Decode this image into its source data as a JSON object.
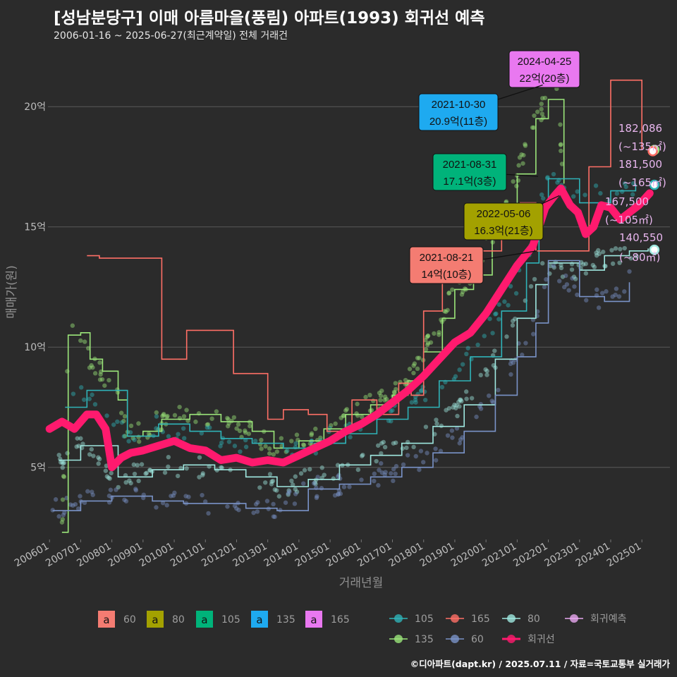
{
  "title": "[성남분당구] 이매 아름마을(풍림) 아파트(1993) 회귀선 예측",
  "subtitle": "2006-01-16 ~ 2025-06-27(최근계약일) 전체 거래건",
  "caption": "©디아파트(dapt.kr) / 2025.07.11 / 자료=국토교통부 실거래가",
  "chart_data": {
    "type": "line",
    "xlabel": "거래년월",
    "ylabel": "매매가(원)",
    "ylim": [
      2,
      22.5
    ],
    "xlim": [
      2005.95,
      2025.9
    ],
    "y_unit_suffix": "억",
    "y_ticks": [
      5,
      10,
      15,
      20
    ],
    "x_tick_labels": [
      "200601",
      "200701",
      "200801",
      "200901",
      "201001",
      "201101",
      "201201",
      "201301",
      "201401",
      "201501",
      "201601",
      "201701",
      "201801",
      "201901",
      "202001",
      "202101",
      "202201",
      "202301",
      "202401",
      "202501"
    ],
    "grid": "horizontal",
    "legend_placement": "bottom",
    "colors": {
      "60": "#7a93c8",
      "80": "#9fe8e0",
      "105": "#2fb3b8",
      "135": "#9be67a",
      "165": "#ff6f66",
      "regression": "#ff1a6e",
      "forecast": "#e8a8f0"
    },
    "series": [
      {
        "name": "135",
        "x": [
          2006.4,
          2006.6,
          2007.0,
          2007.3,
          2007.7,
          2008.2,
          2008.5,
          2009.0,
          2009.6,
          2010.5,
          2011.5,
          2012.5,
          2013.2,
          2014.0,
          2014.8,
          2015.5,
          2016.3,
          2017.0,
          2017.5,
          2018.0,
          2018.6,
          2019.0,
          2019.6,
          2020.2,
          2020.7,
          2021.0,
          2021.6,
          2022.0,
          2022.3,
          2022.5
        ],
        "y": [
          2.3,
          10.5,
          10.6,
          9.5,
          9.0,
          7.8,
          6.3,
          6.5,
          7.0,
          7.2,
          6.9,
          6.5,
          5.8,
          6.1,
          6.6,
          7.2,
          7.6,
          8.0,
          8.6,
          9.8,
          11.2,
          12.4,
          13.0,
          14.6,
          15.8,
          17.2,
          19.5,
          20.3,
          20.3,
          16.8
        ]
      },
      {
        "name": "105",
        "x": [
          2006.5,
          2007.2,
          2008.5,
          2009.5,
          2010.5,
          2011.5,
          2012.5,
          2013.5,
          2014.5,
          2015.5,
          2016.5,
          2017.5,
          2018.5,
          2019.5,
          2020.5,
          2021.3,
          2021.7,
          2022.0,
          2023.0,
          2024.0,
          2024.8
        ],
        "y": [
          7.5,
          8.2,
          6.3,
          6.8,
          6.5,
          6.2,
          6.0,
          5.8,
          6.0,
          6.4,
          7.0,
          7.5,
          8.6,
          9.6,
          11.5,
          13.5,
          15.8,
          17.0,
          16.0,
          16.5,
          16.8
        ]
      },
      {
        "name": "80",
        "x": [
          2006.3,
          2007.0,
          2008.2,
          2009.3,
          2010.3,
          2011.3,
          2012.3,
          2013.3,
          2014.3,
          2015.3,
          2016.3,
          2017.3,
          2018.3,
          2019.3,
          2020.3,
          2021.0,
          2021.6,
          2022.0,
          2023.0,
          2023.8,
          2024.6,
          2025.2
        ],
        "y": [
          5.3,
          5.9,
          4.6,
          4.9,
          5.1,
          4.9,
          4.6,
          4.2,
          4.5,
          5.1,
          5.5,
          6.0,
          6.7,
          7.6,
          9.5,
          11.2,
          12.6,
          13.5,
          13.2,
          13.8,
          14.0,
          14.1
        ]
      },
      {
        "name": "60",
        "x": [
          2006.1,
          2007.0,
          2008.0,
          2009.3,
          2010.3,
          2011.3,
          2012.3,
          2013.3,
          2014.3,
          2015.3,
          2016.3,
          2017.3,
          2018.3,
          2019.3,
          2020.3,
          2021.0,
          2021.6,
          2022.0,
          2023.0,
          2023.8,
          2024.6
        ],
        "y": [
          3.2,
          3.6,
          3.8,
          3.6,
          3.5,
          3.5,
          3.3,
          3.2,
          4.1,
          4.3,
          4.6,
          5.0,
          5.6,
          6.5,
          8.0,
          9.6,
          11.0,
          13.6,
          12.1,
          11.9,
          12.7
        ]
      },
      {
        "name": "165",
        "x": [
          2007.2,
          2007.6,
          2009.6,
          2010.0,
          2010.4,
          2010.9,
          2011.9,
          2012.3,
          2013.0,
          2013.5,
          2014.3,
          2014.9,
          2015.7,
          2016.5,
          2017.2,
          2017.6,
          2018.0,
          2018.6,
          2019.3,
          2019.9,
          2020.5,
          2021.1,
          2021.6,
          2023.3,
          2024.0,
          2024.6,
          2025.0
        ],
        "y": [
          13.8,
          13.7,
          9.5,
          9.5,
          10.7,
          10.7,
          8.9,
          8.9,
          7.0,
          7.4,
          7.2,
          6.5,
          7.8,
          7.2,
          8.5,
          8.0,
          11.5,
          12.7,
          13.0,
          14.0,
          15.0,
          16.0,
          14.0,
          17.5,
          21.1,
          21.1,
          18.2
        ]
      },
      {
        "name": "회귀선",
        "x": [
          2006.0,
          2006.4,
          2006.8,
          2007.2,
          2007.5,
          2007.8,
          2008.0,
          2008.3,
          2008.6,
          2009.0,
          2009.5,
          2010.0,
          2010.5,
          2011.0,
          2011.5,
          2012.0,
          2012.5,
          2013.0,
          2013.5,
          2014.0,
          2014.5,
          2015.0,
          2015.5,
          2016.0,
          2016.5,
          2017.0,
          2017.5,
          2018.0,
          2018.5,
          2019.0,
          2019.5,
          2020.0,
          2020.5,
          2021.0,
          2021.5,
          2021.9,
          2022.2,
          2022.4,
          2022.7,
          2022.95,
          2023.2,
          2023.45,
          2023.7,
          2024.0,
          2024.3,
          2024.6,
          2024.9,
          2025.25
        ],
        "y": [
          6.6,
          6.9,
          6.6,
          7.2,
          7.2,
          6.6,
          5.0,
          5.4,
          5.6,
          5.7,
          5.9,
          6.1,
          5.8,
          5.7,
          5.3,
          5.4,
          5.2,
          5.3,
          5.2,
          5.5,
          5.8,
          6.1,
          6.5,
          6.8,
          7.2,
          7.7,
          8.2,
          8.8,
          9.5,
          10.2,
          10.6,
          11.4,
          12.4,
          13.4,
          14.2,
          15.8,
          16.3,
          16.6,
          15.9,
          15.6,
          14.7,
          15.0,
          15.9,
          15.8,
          15.3,
          15.6,
          15.9,
          16.4
        ]
      }
    ],
    "annotations": [
      {
        "date": "2024-04-25",
        "text": "22억(20층)",
        "series": "165",
        "x": 2022.0,
        "y": 20.9
      },
      {
        "date": "2021-10-30",
        "text": "20.9억(11층)",
        "series": "135",
        "x": 2021.8,
        "y": 20.9
      },
      {
        "date": "2021-08-31",
        "text": "17.1억(3층)",
        "series": "105",
        "x": 2021.67,
        "y": 17.1
      },
      {
        "date": "2022-05-06",
        "text": "16.3억(21층)",
        "series": "80",
        "x": 2022.35,
        "y": 16.3
      },
      {
        "date": "2021-08-21",
        "text": "14억(10층)",
        "series": "60",
        "x": 2021.64,
        "y": 14.0
      }
    ],
    "forecast": [
      {
        "value": "182,086",
        "area": "(~135㎡)",
        "series": "135",
        "x": 2025.4,
        "y": 18.2
      },
      {
        "value": "181,500",
        "area": "(~165㎡)",
        "series": "165",
        "x": 2025.35,
        "y": 18.15
      },
      {
        "value": "167,500",
        "area": "(~105㎡)",
        "series": "105",
        "x": 2025.4,
        "y": 16.75
      },
      {
        "value": "140,550",
        "area": "(~80㎡)",
        "series": "80",
        "x": 2025.4,
        "y": 14.05
      }
    ],
    "legend": {
      "labels": [
        {
          "key": "60",
          "text": "60"
        },
        {
          "key": "80",
          "text": "80"
        },
        {
          "key": "105",
          "text": "105"
        },
        {
          "key": "135",
          "text": "135"
        },
        {
          "key": "165",
          "text": "165"
        }
      ],
      "labels_glyph": "a",
      "lines": [
        {
          "key": "105",
          "text": "105"
        },
        {
          "key": "165",
          "text": "165"
        },
        {
          "key": "80",
          "text": "80"
        },
        {
          "key": "forecast",
          "text": "회귀예측"
        },
        {
          "key": "135",
          "text": "135"
        },
        {
          "key": "60",
          "text": "60"
        },
        {
          "key": "regression",
          "text": "회귀선"
        }
      ]
    }
  }
}
